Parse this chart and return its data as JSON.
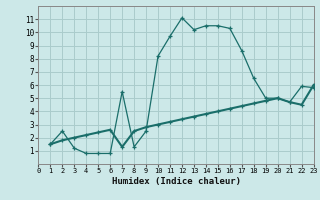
{
  "xlabel": "Humidex (Indice chaleur)",
  "bg_color": "#cce8e8",
  "grid_color": "#aacccc",
  "line_color": "#1a6e6a",
  "line1_x": [
    1,
    2,
    3,
    4,
    5,
    6,
    7,
    8,
    9,
    10,
    11,
    12,
    13,
    14,
    15,
    16,
    17,
    18,
    19,
    20,
    21,
    22,
    23
  ],
  "line1_y": [
    1.5,
    2.5,
    1.2,
    0.8,
    0.8,
    0.8,
    5.5,
    1.3,
    2.5,
    8.2,
    9.7,
    11.1,
    10.2,
    10.5,
    10.5,
    10.3,
    8.6,
    6.5,
    5.0,
    5.0,
    4.7,
    5.9,
    5.8
  ],
  "line2_x": [
    1,
    2,
    3,
    4,
    5,
    6,
    7,
    8,
    9,
    10,
    11,
    12,
    13,
    14,
    15,
    16,
    17,
    18,
    19,
    20,
    21,
    22,
    23
  ],
  "line2_y": [
    1.5,
    1.8,
    2.0,
    2.2,
    2.4,
    2.6,
    1.3,
    2.5,
    2.8,
    3.0,
    3.2,
    3.4,
    3.6,
    3.8,
    4.0,
    4.2,
    4.4,
    4.6,
    4.8,
    5.0,
    4.7,
    4.5,
    6.0
  ],
  "xlim": [
    0,
    23
  ],
  "ylim": [
    0,
    12
  ],
  "xticks": [
    0,
    1,
    2,
    3,
    4,
    5,
    6,
    7,
    8,
    9,
    10,
    11,
    12,
    13,
    14,
    15,
    16,
    17,
    18,
    19,
    20,
    21,
    22,
    23
  ],
  "yticks": [
    1,
    2,
    3,
    4,
    5,
    6,
    7,
    8,
    9,
    10,
    11
  ]
}
